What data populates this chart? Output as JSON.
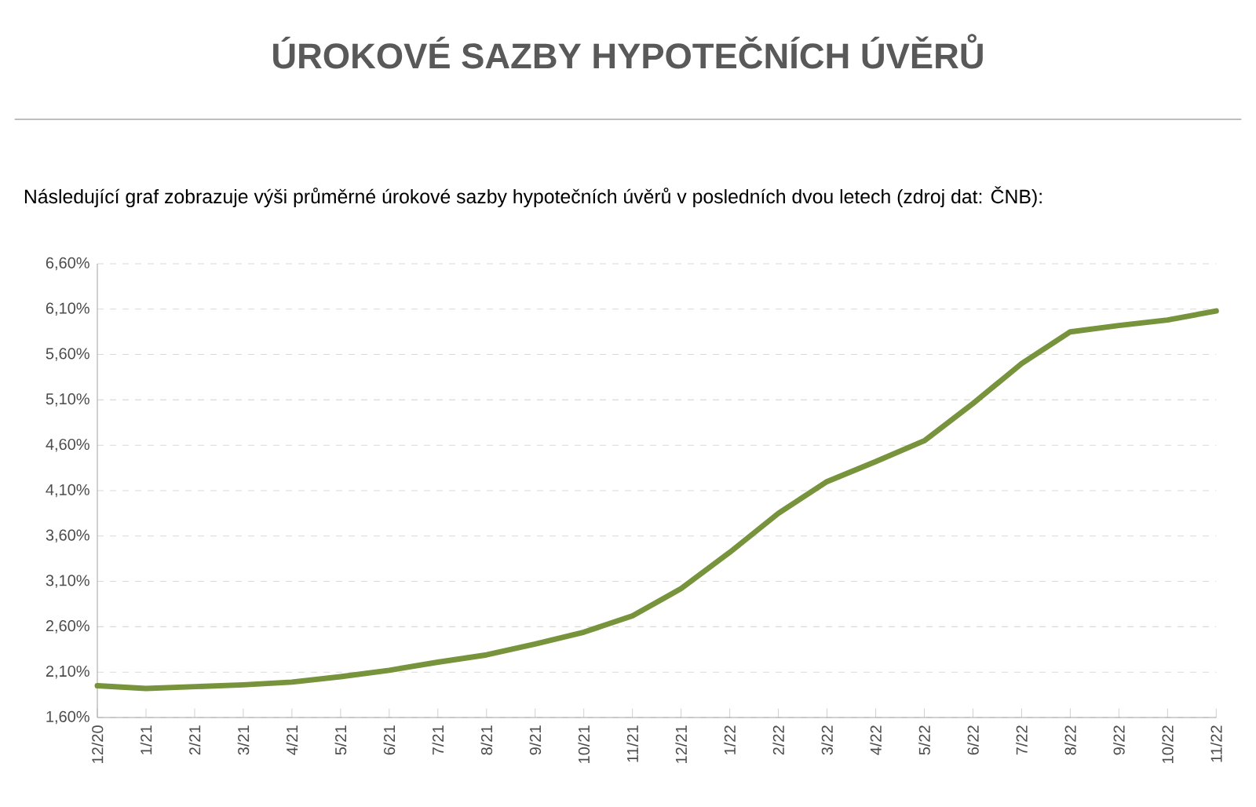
{
  "chart_data": {
    "type": "line",
    "title": "ÚROKOVÉ SAZBY HYPOTEČNÍCH ÚVĚRŮ",
    "subtitle": "Následující graf zobrazuje výši průměrné úrokové sazby hypotečních úvěrů v posledních dvou letech (zdroj dat: ČNB):",
    "categories": [
      "12/20",
      "1/21",
      "2/21",
      "3/21",
      "4/21",
      "5/21",
      "6/21",
      "7/21",
      "8/21",
      "9/21",
      "10/21",
      "11/21",
      "12/21",
      "1/22",
      "2/22",
      "3/22",
      "4/22",
      "5/22",
      "6/22",
      "7/22",
      "8/22",
      "9/22",
      "10/22",
      "11/22"
    ],
    "series": [
      {
        "color": "#77933c",
        "values": [
          1.95,
          1.92,
          1.94,
          1.96,
          1.99,
          2.05,
          2.12,
          2.21,
          2.29,
          2.41,
          2.54,
          2.72,
          3.02,
          3.42,
          3.85,
          4.2,
          4.42,
          4.65,
          5.06,
          5.5,
          5.85,
          5.92,
          5.98,
          6.08
        ]
      }
    ],
    "ylim": [
      1.6,
      6.6
    ],
    "yticks": [
      {
        "value": 1.6,
        "label": "1,60%"
      },
      {
        "value": 2.1,
        "label": "2,10%"
      },
      {
        "value": 2.6,
        "label": "2,60%"
      },
      {
        "value": 3.1,
        "label": "3,10%"
      },
      {
        "value": 3.6,
        "label": "3,60%"
      },
      {
        "value": 4.1,
        "label": "4,10%"
      },
      {
        "value": 4.6,
        "label": "4,60%"
      },
      {
        "value": 5.1,
        "label": "5,10%"
      },
      {
        "value": 5.6,
        "label": "5,60%"
      },
      {
        "value": 6.1,
        "label": "6,10%"
      },
      {
        "value": 6.6,
        "label": "6,60%"
      }
    ],
    "grid": "y",
    "marker": "none",
    "line_style": "solid"
  }
}
